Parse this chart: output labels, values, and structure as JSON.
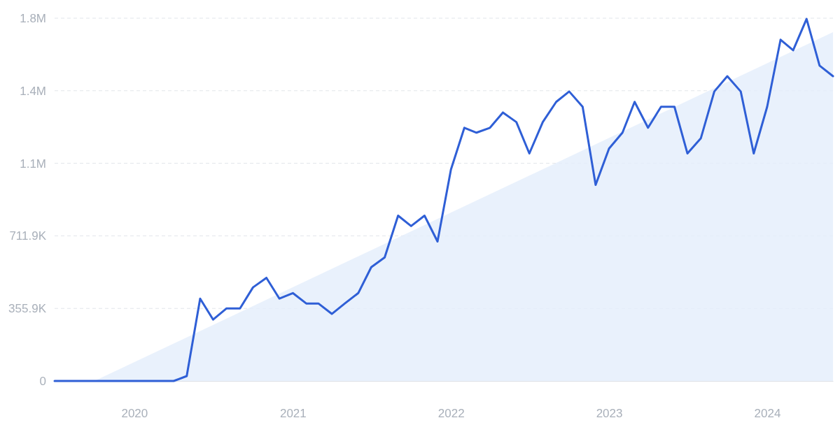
{
  "chart_data": {
    "type": "line",
    "x": [
      "2019-07",
      "2019-08",
      "2019-09",
      "2019-10",
      "2019-11",
      "2019-12",
      "2020-01",
      "2020-02",
      "2020-03",
      "2020-04",
      "2020-05",
      "2020-06",
      "2020-07",
      "2020-08",
      "2020-09",
      "2020-10",
      "2020-11",
      "2020-12",
      "2021-01",
      "2021-02",
      "2021-03",
      "2021-04",
      "2021-05",
      "2021-06",
      "2021-07",
      "2021-08",
      "2021-09",
      "2021-10",
      "2021-11",
      "2021-12",
      "2022-01",
      "2022-02",
      "2022-03",
      "2022-04",
      "2022-05",
      "2022-06",
      "2022-07",
      "2022-08",
      "2022-09",
      "2022-10",
      "2022-11",
      "2022-12",
      "2023-01",
      "2023-02",
      "2023-03",
      "2023-04",
      "2023-05",
      "2023-06",
      "2023-07",
      "2023-08",
      "2023-09",
      "2023-10",
      "2023-11",
      "2023-12",
      "2024-01",
      "2024-02",
      "2024-03",
      "2024-04",
      "2024-05",
      "2024-06"
    ],
    "series": [
      {
        "type": "area",
        "color": "#e3edfb",
        "x": [
          "2019-10",
          "2024-06"
        ],
        "values": [
          0,
          1711000
        ]
      },
      {
        "type": "line",
        "color": "#2f5fd6",
        "values": [
          0,
          0,
          0,
          0,
          0,
          0,
          0,
          0,
          0,
          0,
          24000,
          404000,
          301000,
          356000,
          356000,
          459000,
          506000,
          404000,
          431000,
          380000,
          380000,
          329000,
          380000,
          431000,
          558000,
          606000,
          811000,
          760000,
          811000,
          684000,
          1037000,
          1242000,
          1218000,
          1242000,
          1317000,
          1270000,
          1116000,
          1270000,
          1369000,
          1420000,
          1345000,
          962000,
          1140000,
          1218000,
          1369000,
          1242000,
          1345000,
          1345000,
          1116000,
          1191000,
          1420000,
          1495000,
          1420000,
          1116000,
          1345000,
          1674000,
          1622000,
          1776000,
          1547000,
          1495000
        ]
      }
    ],
    "xlim": [
      "2019-07",
      "2024-06"
    ],
    "xticks": [
      {
        "value": "2020-01",
        "label": "2020"
      },
      {
        "value": "2021-01",
        "label": "2021"
      },
      {
        "value": "2022-01",
        "label": "2022"
      },
      {
        "value": "2023-01",
        "label": "2023"
      },
      {
        "value": "2024-01",
        "label": "2024"
      }
    ],
    "ylim": [
      0,
      1779600
    ],
    "yticks": [
      0,
      {
        "value": 355900,
        "label": "355.9K"
      },
      {
        "value": 711900,
        "label": "711.9K"
      },
      {
        "value": 1067800,
        "label": "1.1M"
      },
      {
        "value": 1423700,
        "label": "1.4M"
      },
      {
        "value": 1779600,
        "label": "1.8M"
      }
    ],
    "grid": "y",
    "line_style": "solid",
    "marker": "none"
  }
}
